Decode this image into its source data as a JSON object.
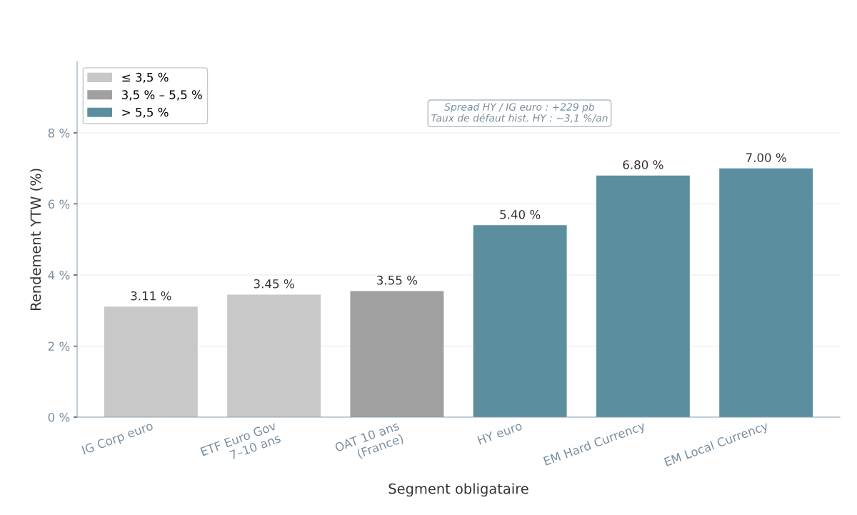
{
  "chart_data": {
    "type": "bar",
    "xlabel": "Segment obligataire",
    "ylabel": "Rendement YTW (%)",
    "categories": [
      "IG Corp euro",
      "ETF Euro Gov\n7–10 ans",
      "OAT 10 ans\n(France)",
      "HY euro",
      "EM Hard Currency",
      "EM Local Currency"
    ],
    "series": [
      {
        "name": "≤ 3,5 %",
        "color": "#c8c8c8",
        "values": [
          3.11,
          3.45,
          null,
          null,
          null,
          null
        ],
        "value_labels": [
          "3.11 %",
          "3.45 %",
          null,
          null,
          null,
          null
        ]
      },
      {
        "name": "3,5 % – 5,5 %",
        "color": "#a0a0a0",
        "values": [
          null,
          null,
          3.55,
          null,
          null,
          null
        ],
        "value_labels": [
          null,
          null,
          "3.55 %",
          null,
          null,
          null
        ]
      },
      {
        "name": "> 5,5 %",
        "color": "#5b8fa0",
        "values": [
          null,
          null,
          null,
          5.4,
          6.8,
          7.0
        ],
        "value_labels": [
          null,
          null,
          null,
          "5.40 %",
          "6.80 %",
          "7.00 %"
        ]
      }
    ],
    "ylim": [
      0,
      10
    ],
    "yticks": [
      {
        "value": 0,
        "label": "0 %"
      },
      {
        "value": 2,
        "label": "2 %"
      },
      {
        "value": 4,
        "label": "4 %"
      },
      {
        "value": 6,
        "label": "6 %"
      },
      {
        "value": 8,
        "label": "8 %"
      }
    ],
    "annotations": [
      "Spread HY / IG euro : +229 pb\nTaux de défaut hist. HY : ~3,1 %/an"
    ],
    "grid": "y",
    "legend": "top left"
  }
}
